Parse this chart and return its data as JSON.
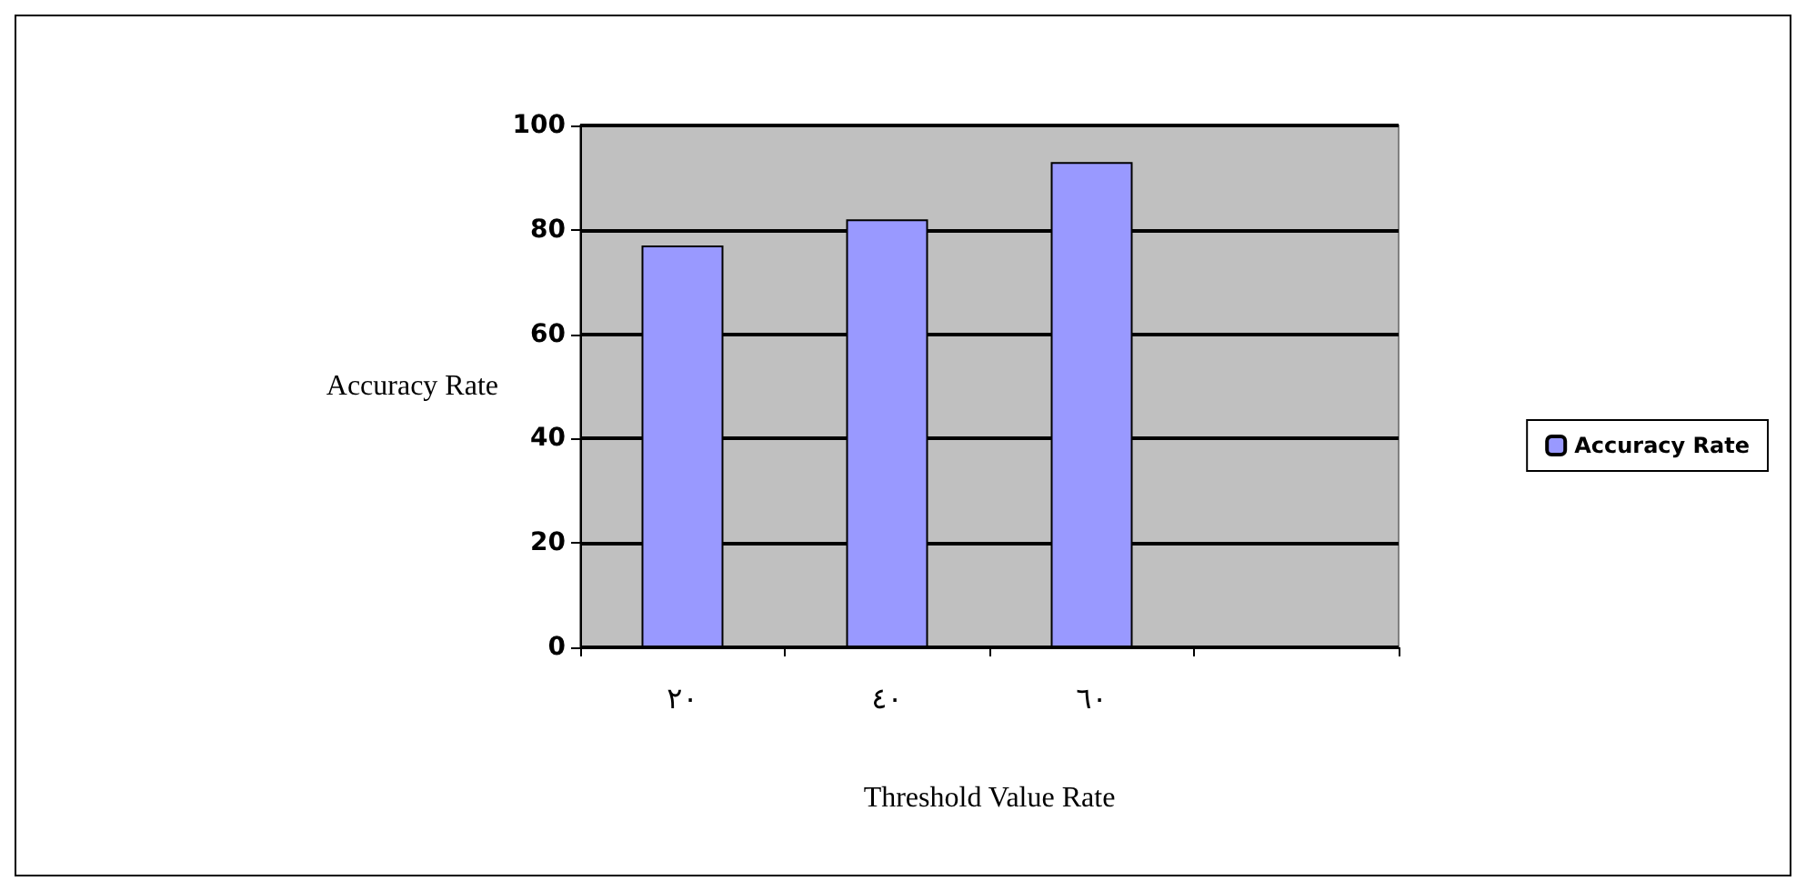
{
  "chart_data": {
    "type": "bar",
    "xlabel": "Threshold Value Rate",
    "ylabel": "Accuracy Rate",
    "categories": [
      "٢٠",
      "٤٠",
      "٦٠",
      null
    ],
    "series": [
      {
        "name": "Accuracy Rate",
        "color": "#9999ff",
        "values": [
          77,
          82,
          93,
          null
        ]
      }
    ],
    "ylim": [
      0,
      100
    ],
    "yticks": [
      0,
      20,
      40,
      60,
      80,
      100
    ],
    "grid": "y",
    "legend": "right"
  }
}
